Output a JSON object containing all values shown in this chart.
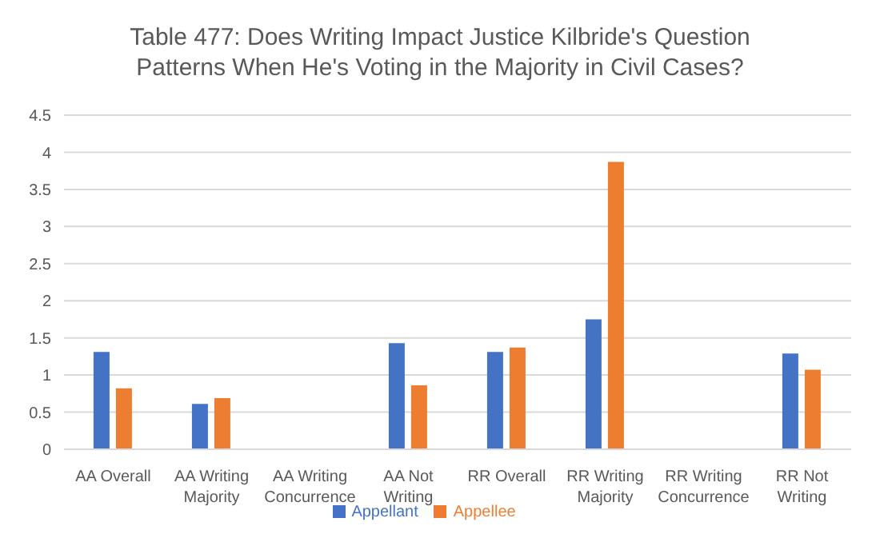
{
  "chart_data": {
    "type": "bar",
    "title": "Table 477: Does Writing Impact Justice Kilbride's Question Patterns When He's Voting in the Majority in Civil Cases?",
    "categories": [
      "AA Overall",
      "AA Writing Majority",
      "AA Writing Concurrence",
      "AA Not Writing",
      "RR Overall",
      "RR Writing Majority",
      "RR Writing Concurrence",
      "RR Not Writing"
    ],
    "series": [
      {
        "name": "Appellant",
        "color": "#4472c4",
        "values": [
          1.31,
          0.61,
          0,
          1.43,
          1.31,
          1.75,
          0,
          1.29
        ]
      },
      {
        "name": "Appellee",
        "color": "#ed7d31",
        "values": [
          0.82,
          0.69,
          0,
          0.86,
          1.37,
          3.87,
          0,
          1.07
        ]
      }
    ],
    "ylim": [
      0,
      4.5
    ],
    "yticks": [
      0,
      0.5,
      1,
      1.5,
      2,
      2.5,
      3,
      3.5,
      4,
      4.5
    ],
    "grid": "y",
    "legend": "bottom"
  }
}
